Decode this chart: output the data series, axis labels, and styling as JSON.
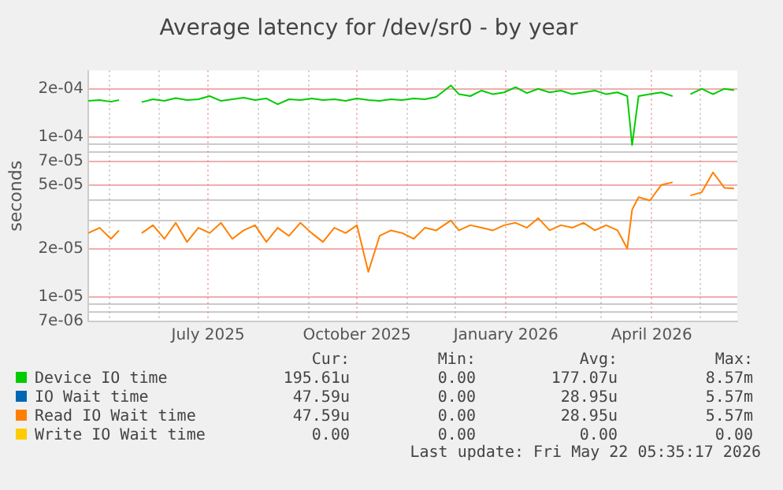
{
  "chart_data": {
    "type": "line",
    "title": "Average latency for /dev/sr0 - by year",
    "ylabel": "seconds",
    "log": "y",
    "grid": true,
    "legend": "bottom",
    "marker": "none",
    "line_style": "solid",
    "x": [
      "2025-04-18",
      "2025-04-25",
      "2025-05-02",
      "2025-05-07",
      "2025-05-14",
      "2025-05-21",
      "2025-05-28",
      "2025-06-04",
      "2025-06-11",
      "2025-06-18",
      "2025-06-25",
      "2025-07-02",
      "2025-07-09",
      "2025-07-16",
      "2025-07-23",
      "2025-07-30",
      "2025-08-06",
      "2025-08-13",
      "2025-08-20",
      "2025-08-27",
      "2025-09-03",
      "2025-09-10",
      "2025-09-17",
      "2025-09-24",
      "2025-10-01",
      "2025-10-08",
      "2025-10-15",
      "2025-10-22",
      "2025-10-29",
      "2025-11-05",
      "2025-11-12",
      "2025-11-19",
      "2025-11-28",
      "2025-12-03",
      "2025-12-10",
      "2025-12-17",
      "2025-12-24",
      "2025-12-31",
      "2026-01-07",
      "2026-01-14",
      "2026-01-21",
      "2026-01-28",
      "2026-02-04",
      "2026-02-11",
      "2026-02-18",
      "2026-02-25",
      "2026-03-04",
      "2026-03-11",
      "2026-03-17",
      "2026-03-20",
      "2026-03-24",
      "2026-03-31",
      "2026-04-07",
      "2026-04-14",
      "2026-04-20",
      "2026-04-25",
      "2026-05-02",
      "2026-05-09",
      "2026-05-16",
      "2026-05-22"
    ],
    "series": [
      {
        "name": "Device IO time",
        "color": "#00cc00",
        "values": [
          0.000168,
          0.00017,
          0.000166,
          0.00017,
          null,
          0.000165,
          0.000172,
          0.000168,
          0.000175,
          0.00017,
          0.000172,
          0.00018,
          0.000168,
          0.000172,
          0.000176,
          0.00017,
          0.000174,
          0.00016,
          0.000172,
          0.00017,
          0.000174,
          0.00017,
          0.000172,
          0.000168,
          0.000174,
          0.00017,
          0.000168,
          0.000172,
          0.00017,
          0.000174,
          0.000172,
          0.000178,
          0.00021,
          0.000185,
          0.00018,
          0.000195,
          0.000185,
          0.00019,
          0.000205,
          0.000188,
          0.0002,
          0.00019,
          0.000195,
          0.000185,
          0.00019,
          0.000195,
          0.000185,
          0.00019,
          0.00018,
          8.9e-05,
          0.00018,
          0.000185,
          0.00019,
          0.00018,
          null,
          0.000185,
          0.0002,
          0.000185,
          0.0002,
          0.000196
        ]
      },
      {
        "name": "IO Wait time",
        "color": "#0066b3",
        "values": [
          null,
          null,
          null,
          null,
          null,
          null,
          null,
          null,
          null,
          null,
          null,
          null,
          null,
          null,
          null,
          null,
          null,
          null,
          null,
          null,
          null,
          null,
          null,
          null,
          null,
          null,
          null,
          null,
          null,
          null,
          null,
          null,
          null,
          null,
          null,
          null,
          null,
          null,
          null,
          null,
          null,
          null,
          null,
          null,
          null,
          null,
          null,
          null,
          null,
          null,
          null,
          null,
          null,
          null,
          null,
          null,
          null,
          null,
          null,
          null
        ]
      },
      {
        "name": "Read IO Wait time",
        "color": "#ff8000",
        "values": [
          2.5e-05,
          2.7e-05,
          2.3e-05,
          2.6e-05,
          null,
          2.5e-05,
          2.8e-05,
          2.3e-05,
          2.9e-05,
          2.2e-05,
          2.7e-05,
          2.5e-05,
          2.9e-05,
          2.3e-05,
          2.6e-05,
          2.8e-05,
          2.2e-05,
          2.7e-05,
          2.4e-05,
          2.9e-05,
          2.5e-05,
          2.2e-05,
          2.7e-05,
          2.5e-05,
          2.8e-05,
          1.43e-05,
          2.4e-05,
          2.6e-05,
          2.5e-05,
          2.3e-05,
          2.7e-05,
          2.6e-05,
          3e-05,
          2.6e-05,
          2.8e-05,
          2.7e-05,
          2.6e-05,
          2.8e-05,
          2.9e-05,
          2.7e-05,
          3.1e-05,
          2.6e-05,
          2.8e-05,
          2.7e-05,
          2.9e-05,
          2.6e-05,
          2.8e-05,
          2.6e-05,
          2e-05,
          3.5e-05,
          4.2e-05,
          4e-05,
          5e-05,
          5.2e-05,
          null,
          4.3e-05,
          4.5e-05,
          6e-05,
          4.8e-05,
          4.76e-05
        ]
      },
      {
        "name": "Write IO Wait time",
        "color": "#ffcc00",
        "values": [
          null,
          null,
          null,
          null,
          null,
          null,
          null,
          null,
          null,
          null,
          null,
          null,
          null,
          null,
          null,
          null,
          null,
          null,
          null,
          null,
          null,
          null,
          null,
          null,
          null,
          null,
          null,
          null,
          null,
          null,
          null,
          null,
          null,
          null,
          null,
          null,
          null,
          null,
          null,
          null,
          null,
          null,
          null,
          null,
          null,
          null,
          null,
          null,
          null,
          null,
          null,
          null,
          null,
          null,
          null,
          null,
          null,
          null,
          null,
          null
        ]
      }
    ],
    "xlim": [
      "2025-04-18",
      "2026-05-24"
    ],
    "xticks": [
      {
        "value": "2025-05-01",
        "label": null
      },
      {
        "value": "2025-06-01",
        "label": null
      },
      {
        "value": "2025-07-01",
        "label": "July 2025"
      },
      {
        "value": "2025-08-01",
        "label": null
      },
      {
        "value": "2025-09-01",
        "label": null
      },
      {
        "value": "2025-10-01",
        "label": "October 2025"
      },
      {
        "value": "2025-11-01",
        "label": null
      },
      {
        "value": "2025-12-01",
        "label": null
      },
      {
        "value": "2026-01-01",
        "label": "January 2026"
      },
      {
        "value": "2026-02-01",
        "label": null
      },
      {
        "value": "2026-03-01",
        "label": null
      },
      {
        "value": "2026-04-01",
        "label": "April 2026"
      },
      {
        "value": "2026-05-01",
        "label": null
      }
    ],
    "ylim": [
      7e-06,
      0.00026
    ],
    "yticks": [
      {
        "value": 7e-06,
        "label": "7e-06"
      },
      {
        "value": 8e-06,
        "label": null
      },
      {
        "value": 9e-06,
        "label": null
      },
      {
        "value": 1e-05,
        "label": "1e-05"
      },
      {
        "value": 2e-05,
        "label": "2e-05"
      },
      {
        "value": 3e-05,
        "label": null
      },
      {
        "value": 4e-05,
        "label": null
      },
      {
        "value": 5e-05,
        "label": "5e-05"
      },
      {
        "value": 7e-05,
        "label": "7e-05"
      },
      {
        "value": 8e-05,
        "label": null
      },
      {
        "value": 9e-05,
        "label": null
      },
      {
        "value": 0.0001,
        "label": "1e-04"
      },
      {
        "value": 0.0002,
        "label": "2e-04"
      }
    ],
    "annotations": [
      "Cur:",
      "Min:",
      "Avg:",
      "Max:",
      "195.61u",
      "0.00",
      "177.07u",
      "8.57m",
      "47.59u",
      "0.00",
      "28.95u",
      "5.57m",
      "47.59u",
      "0.00",
      "28.95u",
      "5.57m",
      "0.00",
      "0.00",
      "0.00",
      "0.00",
      "Last update: Fri May 22 05:35:17 2026"
    ]
  }
}
